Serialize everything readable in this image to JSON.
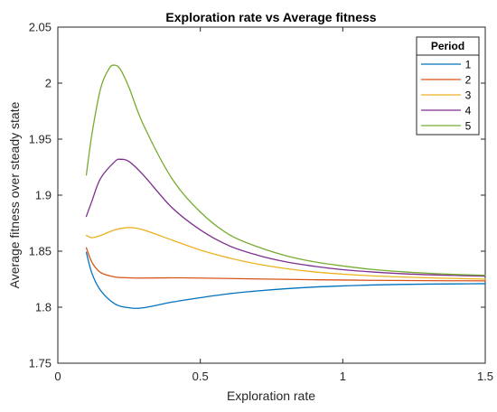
{
  "chart_data": {
    "type": "line",
    "title": "Exploration rate vs Average fitness",
    "xlabel": "Exploration rate",
    "ylabel": "Average fitness over steady state",
    "xlim": [
      0,
      1.5
    ],
    "ylim": [
      1.75,
      2.05
    ],
    "xticks": [
      "0",
      "0.5",
      "1",
      "1.5"
    ],
    "yticks": [
      "1.75",
      "1.8",
      "1.85",
      "1.9",
      "1.95",
      "2",
      "2.05"
    ],
    "grid": false,
    "legend": {
      "title": "Period",
      "placement": "top-right"
    },
    "series": [
      {
        "name": "1",
        "color": "#0072BD",
        "points": [
          [
            0.1,
            1.849
          ],
          [
            0.12,
            1.83
          ],
          [
            0.15,
            1.815
          ],
          [
            0.2,
            1.803
          ],
          [
            0.25,
            1.7995
          ],
          [
            0.3,
            1.7995
          ],
          [
            0.4,
            1.8045
          ],
          [
            0.5,
            1.8085
          ],
          [
            0.6,
            1.812
          ],
          [
            0.7,
            1.8145
          ],
          [
            0.8,
            1.8165
          ],
          [
            0.9,
            1.818
          ],
          [
            1.0,
            1.819
          ],
          [
            1.1,
            1.8198
          ],
          [
            1.2,
            1.8203
          ],
          [
            1.3,
            1.8206
          ],
          [
            1.4,
            1.8208
          ],
          [
            1.5,
            1.821
          ]
        ]
      },
      {
        "name": "2",
        "color": "#D95319",
        "points": [
          [
            0.1,
            1.853
          ],
          [
            0.12,
            1.84
          ],
          [
            0.15,
            1.831
          ],
          [
            0.2,
            1.827
          ],
          [
            0.25,
            1.8262
          ],
          [
            0.3,
            1.826
          ],
          [
            0.4,
            1.8262
          ],
          [
            0.5,
            1.826
          ],
          [
            0.7,
            1.8252
          ],
          [
            0.9,
            1.8245
          ],
          [
            1.1,
            1.824
          ],
          [
            1.3,
            1.8237
          ],
          [
            1.5,
            1.8235
          ]
        ]
      },
      {
        "name": "3",
        "color": "#EDB120",
        "points": [
          [
            0.1,
            1.864
          ],
          [
            0.12,
            1.862
          ],
          [
            0.15,
            1.864
          ],
          [
            0.2,
            1.869
          ],
          [
            0.25,
            1.871
          ],
          [
            0.3,
            1.869
          ],
          [
            0.4,
            1.86
          ],
          [
            0.5,
            1.851
          ],
          [
            0.6,
            1.844
          ],
          [
            0.7,
            1.8385
          ],
          [
            0.8,
            1.8345
          ],
          [
            0.9,
            1.8315
          ],
          [
            1.0,
            1.8295
          ],
          [
            1.1,
            1.828
          ],
          [
            1.2,
            1.827
          ],
          [
            1.3,
            1.8262
          ],
          [
            1.4,
            1.8256
          ],
          [
            1.5,
            1.825
          ]
        ]
      },
      {
        "name": "4",
        "color": "#7E2F8E",
        "points": [
          [
            0.1,
            1.881
          ],
          [
            0.12,
            1.895
          ],
          [
            0.15,
            1.915
          ],
          [
            0.2,
            1.93
          ],
          [
            0.22,
            1.932
          ],
          [
            0.25,
            1.93
          ],
          [
            0.3,
            1.918
          ],
          [
            0.4,
            1.889
          ],
          [
            0.5,
            1.869
          ],
          [
            0.6,
            1.855
          ],
          [
            0.7,
            1.8465
          ],
          [
            0.8,
            1.8405
          ],
          [
            0.9,
            1.8365
          ],
          [
            1.0,
            1.8335
          ],
          [
            1.1,
            1.8315
          ],
          [
            1.2,
            1.83
          ],
          [
            1.3,
            1.829
          ],
          [
            1.4,
            1.8283
          ],
          [
            1.5,
            1.8277
          ]
        ]
      },
      {
        "name": "5",
        "color": "#77AC30",
        "points": [
          [
            0.1,
            1.918
          ],
          [
            0.12,
            1.955
          ],
          [
            0.15,
            1.995
          ],
          [
            0.18,
            2.013
          ],
          [
            0.2,
            2.016
          ],
          [
            0.22,
            2.012
          ],
          [
            0.25,
            1.996
          ],
          [
            0.3,
            1.963
          ],
          [
            0.4,
            1.915
          ],
          [
            0.5,
            1.885
          ],
          [
            0.6,
            1.865
          ],
          [
            0.7,
            1.854
          ],
          [
            0.8,
            1.846
          ],
          [
            0.9,
            1.8405
          ],
          [
            1.0,
            1.8368
          ],
          [
            1.1,
            1.8338
          ],
          [
            1.2,
            1.8318
          ],
          [
            1.3,
            1.8303
          ],
          [
            1.4,
            1.8292
          ],
          [
            1.5,
            1.8285
          ]
        ]
      }
    ]
  }
}
